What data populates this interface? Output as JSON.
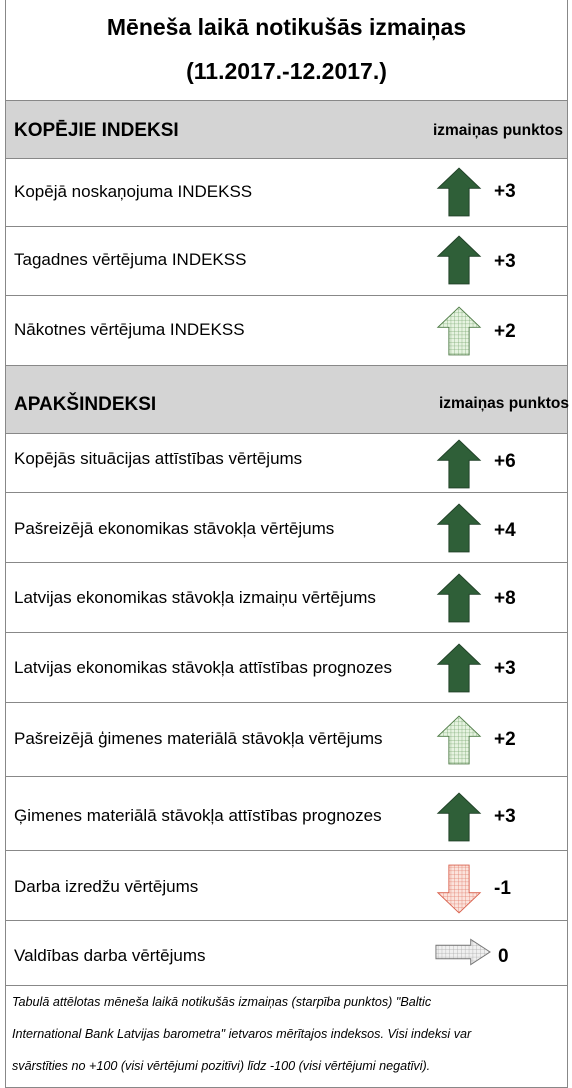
{
  "header": {
    "title_lines": [
      "Mēneša laikā notikušās izmaiņas",
      "(11.2017.-12.2017.)"
    ]
  },
  "sections": [
    {
      "title": "KOPĒJIE INDEKSI",
      "column_label": "izmaiņas punktos",
      "rows": [
        {
          "label": "Kopējā noskaņojuma INDEKSS",
          "change": "+3"
        },
        {
          "label": "Tagadnes vērtējuma INDEKSS",
          "change": "+3"
        },
        {
          "label": "Nākotnes vērtējuma INDEKSS",
          "change": "+2"
        }
      ]
    },
    {
      "title": "APAKŠINDEKSI",
      "column_label": "izmaiņas punktos",
      "rows": [
        {
          "label": "Kopējās situācijas attīstības vērtējums",
          "change": "+6"
        },
        {
          "label": "Pašreizējā ekonomikas stāvokļa vērtējums",
          "change": "+4"
        },
        {
          "label": "Latvijas ekonomikas stāvokļa izmaiņu vērtējums",
          "change": "+8"
        },
        {
          "label": "Latvijas ekonomikas stāvokļa attīstības prognozes",
          "change": "+3"
        },
        {
          "label": "Pašreizējā ģimenes materiālā stāvokļa vērtējums",
          "change": "+2"
        },
        {
          "label": "Ģimenes materiālā stāvokļa attīstības prognozes",
          "change": "+3"
        },
        {
          "label": "Darba izredžu vērtējums",
          "change": "-1"
        },
        {
          "label": "Valdības darba vērtējums",
          "change": "0"
        }
      ]
    }
  ],
  "footnote_lines": [
    "Tabulā attēlotas mēneša laikā notikušās izmaiņas (starpība punktos) \"Baltic",
    "International Bank Latvijas barometra\" ietvaros mērītajos indeksos. Visi indeksi var",
    "svārstīties no +100 (visi vērtējumi pozitīvi) līdz -100 (visi vērtējumi negatīvi)."
  ]
}
